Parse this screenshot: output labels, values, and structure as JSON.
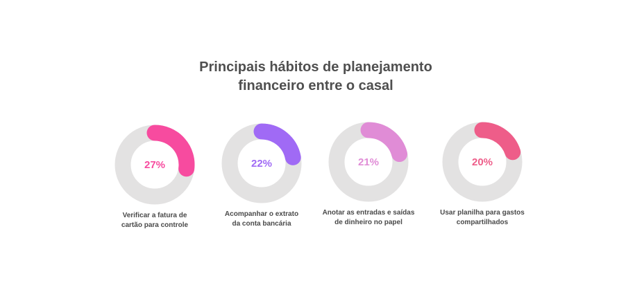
{
  "title": {
    "line1": "Principais hábitos de planejamento",
    "line2": "financeiro entre o casal"
  },
  "colors": {
    "track": "#e3e2e2",
    "text": "#4f4f4f"
  },
  "chart_data": {
    "type": "pie",
    "title": "Principais hábitos de planejamento financeiro entre o casal",
    "items": [
      {
        "value": 27,
        "value_label": "27%",
        "label_lines": [
          "Verificar a fatura de",
          "cartão para controle"
        ],
        "color": "#f74b9f"
      },
      {
        "value": 22,
        "value_label": "22%",
        "label_lines": [
          "Acompanhar o extrato",
          "da conta bancária"
        ],
        "color": "#a06af5"
      },
      {
        "value": 21,
        "value_label": "21%",
        "label_lines": [
          "Anotar as entradas e saídas",
          "de dinheiro no papel"
        ],
        "color": "#e08cd6"
      },
      {
        "value": 20,
        "value_label": "20%",
        "label_lines": [
          "Usar planilha para gastos",
          "compartilhados"
        ],
        "color": "#ee5d89"
      }
    ]
  }
}
